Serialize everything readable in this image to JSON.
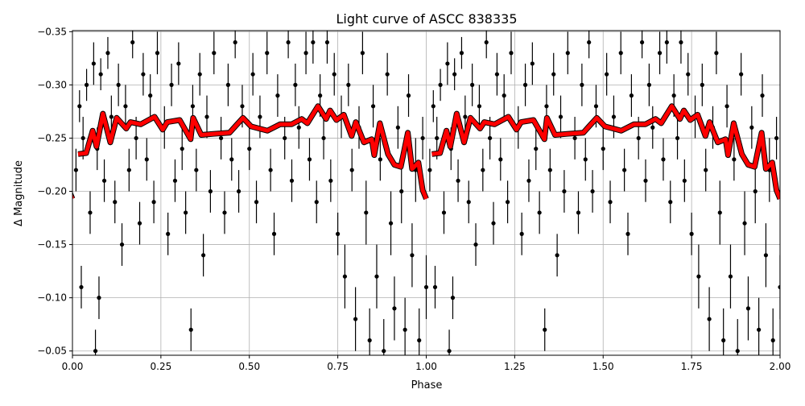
{
  "chart_data": {
    "type": "scatter",
    "title": "Light curve of ASCC 838335",
    "xlabel": "Phase",
    "ylabel": "Δ Magnitude",
    "xlim": [
      0,
      2
    ],
    "ylim": [
      -0.351,
      -0.046
    ],
    "y_inverted": true,
    "grid": true,
    "phase_cycles_shown": 2,
    "x_ticks": [
      "0.00",
      "0.25",
      "0.50",
      "0.75",
      "1.00",
      "1.25",
      "1.50",
      "1.75",
      "2.00"
    ],
    "x_tick_values": [
      0,
      0.25,
      0.5,
      0.75,
      1,
      1.25,
      1.5,
      1.75,
      2
    ],
    "y_ticks": [
      "−0.35",
      "−0.30",
      "−0.25",
      "−0.20",
      "−0.15",
      "−0.10",
      "−0.05"
    ],
    "y_tick_values": [
      -0.35,
      -0.3,
      -0.25,
      -0.2,
      -0.15,
      -0.1,
      -0.05
    ],
    "colors": {
      "points": "#000000",
      "binned_curve": "#ff0000",
      "grid": "#b0b0b0"
    },
    "observations": {
      "columns": [
        "phase",
        "delta_mag",
        "error"
      ],
      "values": [
        [
          0.01,
          -0.22,
          0.02
        ],
        [
          0.02,
          -0.28,
          0.015
        ],
        [
          0.025,
          -0.11,
          0.02
        ],
        [
          0.03,
          -0.25,
          0.02
        ],
        [
          0.04,
          -0.3,
          0.015
        ],
        [
          0.05,
          -0.18,
          0.02
        ],
        [
          0.06,
          -0.32,
          0.02
        ],
        [
          0.065,
          -0.05,
          0.02
        ],
        [
          0.07,
          -0.24,
          0.02
        ],
        [
          0.075,
          -0.1,
          0.02
        ],
        [
          0.08,
          -0.31,
          0.015
        ],
        [
          0.09,
          -0.21,
          0.02
        ],
        [
          0.1,
          -0.33,
          0.015
        ],
        [
          0.11,
          -0.27,
          0.02
        ],
        [
          0.12,
          -0.19,
          0.02
        ],
        [
          0.13,
          -0.3,
          0.02
        ],
        [
          0.14,
          -0.15,
          0.02
        ],
        [
          0.15,
          -0.28,
          0.02
        ],
        [
          0.16,
          -0.22,
          0.02
        ],
        [
          0.17,
          -0.34,
          0.015
        ],
        [
          0.18,
          -0.25,
          0.02
        ],
        [
          0.19,
          -0.17,
          0.02
        ],
        [
          0.2,
          -0.31,
          0.02
        ],
        [
          0.21,
          -0.23,
          0.02
        ],
        [
          0.22,
          -0.29,
          0.02
        ],
        [
          0.23,
          -0.19,
          0.02
        ],
        [
          0.24,
          -0.33,
          0.02
        ],
        [
          0.26,
          -0.26,
          0.02
        ],
        [
          0.27,
          -0.16,
          0.02
        ],
        [
          0.28,
          -0.3,
          0.02
        ],
        [
          0.29,
          -0.21,
          0.02
        ],
        [
          0.3,
          -0.32,
          0.02
        ],
        [
          0.31,
          -0.24,
          0.02
        ],
        [
          0.32,
          -0.18,
          0.02
        ],
        [
          0.335,
          -0.07,
          0.02
        ],
        [
          0.34,
          -0.28,
          0.02
        ],
        [
          0.35,
          -0.22,
          0.02
        ],
        [
          0.36,
          -0.31,
          0.02
        ],
        [
          0.37,
          -0.14,
          0.02
        ],
        [
          0.38,
          -0.27,
          0.02
        ],
        [
          0.39,
          -0.2,
          0.02
        ],
        [
          0.4,
          -0.33,
          0.02
        ],
        [
          0.42,
          -0.25,
          0.02
        ],
        [
          0.43,
          -0.18,
          0.02
        ],
        [
          0.44,
          -0.3,
          0.02
        ],
        [
          0.45,
          -0.23,
          0.02
        ],
        [
          0.46,
          -0.34,
          0.015
        ],
        [
          0.47,
          -0.2,
          0.02
        ],
        [
          0.48,
          -0.28,
          0.02
        ],
        [
          0.5,
          -0.24,
          0.02
        ],
        [
          0.51,
          -0.31,
          0.02
        ],
        [
          0.52,
          -0.19,
          0.02
        ],
        [
          0.53,
          -0.27,
          0.02
        ],
        [
          0.55,
          -0.33,
          0.02
        ],
        [
          0.56,
          -0.22,
          0.02
        ],
        [
          0.57,
          -0.16,
          0.02
        ],
        [
          0.58,
          -0.29,
          0.02
        ],
        [
          0.6,
          -0.25,
          0.02
        ],
        [
          0.61,
          -0.34,
          0.015
        ],
        [
          0.62,
          -0.21,
          0.02
        ],
        [
          0.63,
          -0.3,
          0.02
        ],
        [
          0.64,
          -0.26,
          0.02
        ],
        [
          0.66,
          -0.33,
          0.02
        ],
        [
          0.67,
          -0.23,
          0.02
        ],
        [
          0.68,
          -0.34,
          0.02
        ],
        [
          0.69,
          -0.19,
          0.02
        ],
        [
          0.7,
          -0.29,
          0.02
        ],
        [
          0.71,
          -0.25,
          0.02
        ],
        [
          0.72,
          -0.34,
          0.02
        ],
        [
          0.73,
          -0.21,
          0.02
        ],
        [
          0.74,
          -0.31,
          0.02
        ],
        [
          0.75,
          -0.16,
          0.02
        ],
        [
          0.76,
          -0.27,
          0.02
        ],
        [
          0.77,
          -0.12,
          0.03
        ],
        [
          0.78,
          -0.3,
          0.02
        ],
        [
          0.79,
          -0.22,
          0.02
        ],
        [
          0.8,
          -0.08,
          0.03
        ],
        [
          0.81,
          -0.26,
          0.02
        ],
        [
          0.82,
          -0.33,
          0.02
        ],
        [
          0.83,
          -0.18,
          0.03
        ],
        [
          0.84,
          -0.06,
          0.03
        ],
        [
          0.85,
          -0.28,
          0.02
        ],
        [
          0.86,
          -0.12,
          0.03
        ],
        [
          0.87,
          -0.23,
          0.02
        ],
        [
          0.88,
          -0.05,
          0.03
        ],
        [
          0.89,
          -0.31,
          0.02
        ],
        [
          0.9,
          -0.17,
          0.03
        ],
        [
          0.91,
          -0.09,
          0.03
        ],
        [
          0.92,
          -0.26,
          0.02
        ],
        [
          0.93,
          -0.2,
          0.03
        ],
        [
          0.94,
          -0.07,
          0.03
        ],
        [
          0.95,
          -0.29,
          0.02
        ],
        [
          0.96,
          -0.14,
          0.03
        ],
        [
          0.97,
          -0.22,
          0.03
        ],
        [
          0.98,
          -0.06,
          0.03
        ],
        [
          0.99,
          -0.25,
          0.02
        ],
        [
          1.0,
          -0.11,
          0.03
        ]
      ]
    },
    "binned_curve": {
      "columns": [
        "phase",
        "delta_mag"
      ],
      "values": [
        [
          0.016,
          -0.235
        ],
        [
          0.039,
          -0.236
        ],
        [
          0.057,
          -0.257
        ],
        [
          0.068,
          -0.242
        ],
        [
          0.086,
          -0.273
        ],
        [
          0.107,
          -0.246
        ],
        [
          0.125,
          -0.269
        ],
        [
          0.152,
          -0.259
        ],
        [
          0.164,
          -0.265
        ],
        [
          0.193,
          -0.263
        ],
        [
          0.232,
          -0.27
        ],
        [
          0.255,
          -0.258
        ],
        [
          0.268,
          -0.265
        ],
        [
          0.303,
          -0.267
        ],
        [
          0.334,
          -0.249
        ],
        [
          0.341,
          -0.269
        ],
        [
          0.364,
          -0.253
        ],
        [
          0.398,
          -0.254
        ],
        [
          0.444,
          -0.255
        ],
        [
          0.46,
          -0.261
        ],
        [
          0.482,
          -0.269
        ],
        [
          0.505,
          -0.261
        ],
        [
          0.551,
          -0.257
        ],
        [
          0.587,
          -0.263
        ],
        [
          0.619,
          -0.263
        ],
        [
          0.648,
          -0.268
        ],
        [
          0.664,
          -0.264
        ],
        [
          0.694,
          -0.28
        ],
        [
          0.717,
          -0.268
        ],
        [
          0.728,
          -0.276
        ],
        [
          0.746,
          -0.267
        ],
        [
          0.767,
          -0.272
        ],
        [
          0.789,
          -0.252
        ],
        [
          0.801,
          -0.265
        ],
        [
          0.824,
          -0.246
        ],
        [
          0.846,
          -0.249
        ],
        [
          0.853,
          -0.234
        ],
        [
          0.869,
          -0.264
        ],
        [
          0.892,
          -0.235
        ],
        [
          0.91,
          -0.225
        ],
        [
          0.928,
          -0.223
        ],
        [
          0.948,
          -0.255
        ],
        [
          0.96,
          -0.221
        ],
        [
          0.978,
          -0.227
        ],
        [
          0.99,
          -0.201
        ],
        [
          1.0,
          -0.193
        ]
      ]
    }
  }
}
